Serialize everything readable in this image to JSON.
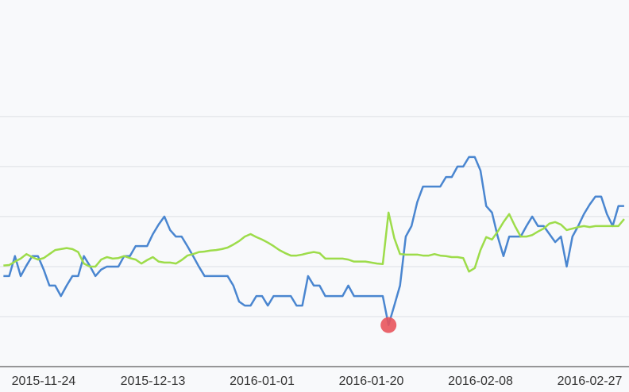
{
  "chart_data": {
    "type": "line",
    "categories": [
      null,
      null,
      null,
      null,
      null,
      null,
      null,
      "2015-11-24",
      null,
      null,
      null,
      null,
      null,
      null,
      null,
      null,
      null,
      null,
      null,
      null,
      null,
      null,
      null,
      null,
      null,
      null,
      "2015-12-13",
      null,
      null,
      null,
      null,
      null,
      null,
      null,
      null,
      null,
      null,
      null,
      null,
      null,
      null,
      null,
      null,
      null,
      null,
      "2016-01-01",
      null,
      null,
      null,
      null,
      null,
      null,
      null,
      null,
      null,
      null,
      null,
      null,
      null,
      null,
      null,
      null,
      null,
      null,
      "2016-01-20",
      null,
      null,
      null,
      null,
      null,
      null,
      null,
      null,
      null,
      null,
      null,
      null,
      null,
      null,
      null,
      null,
      null,
      null,
      "2016-02-08",
      null,
      null,
      null,
      null,
      null,
      null,
      null,
      null,
      null,
      null,
      null,
      null,
      null,
      null,
      null,
      null,
      null,
      null,
      "2016-02-27",
      null,
      null,
      null,
      null,
      null,
      null
    ],
    "series": [
      {
        "color": "#4a86d0",
        "min_point_color": "#e8545c",
        "values": [
          1.81,
          1.81,
          2.21,
          1.81,
          2.02,
          2.21,
          2.21,
          1.94,
          1.62,
          1.62,
          1.41,
          1.62,
          1.81,
          1.81,
          2.21,
          2.02,
          1.81,
          1.94,
          2.0,
          2.0,
          2.0,
          2.21,
          2.21,
          2.41,
          2.41,
          2.41,
          2.65,
          2.84,
          3.0,
          2.73,
          2.6,
          2.6,
          2.41,
          2.21,
          2.0,
          1.81,
          1.81,
          1.81,
          1.81,
          1.81,
          1.62,
          1.3,
          1.22,
          1.22,
          1.41,
          1.41,
          1.22,
          1.41,
          1.41,
          1.41,
          1.41,
          1.22,
          1.22,
          1.81,
          1.62,
          1.62,
          1.41,
          1.41,
          1.41,
          1.41,
          1.62,
          1.41,
          1.41,
          1.41,
          1.41,
          1.41,
          1.41,
          0.83,
          1.22,
          1.62,
          2.6,
          2.81,
          3.29,
          3.6,
          3.6,
          3.6,
          3.6,
          3.79,
          3.79,
          4.0,
          4.0,
          4.19,
          4.19,
          3.92,
          3.21,
          3.08,
          2.6,
          2.21,
          2.6,
          2.6,
          2.6,
          2.81,
          3.0,
          2.81,
          2.81,
          2.65,
          2.49,
          2.6,
          2.0,
          2.6,
          2.81,
          3.05,
          3.24,
          3.4,
          3.4,
          3.05,
          2.81,
          3.21,
          3.21
        ]
      },
      {
        "color": "#9ddc4a",
        "values": [
          2.02,
          2.03,
          2.1,
          2.16,
          2.25,
          2.19,
          2.14,
          2.17,
          2.25,
          2.33,
          2.35,
          2.37,
          2.35,
          2.29,
          2.06,
          2.0,
          2.0,
          2.14,
          2.19,
          2.16,
          2.17,
          2.21,
          2.17,
          2.14,
          2.06,
          2.13,
          2.19,
          2.1,
          2.08,
          2.08,
          2.06,
          2.13,
          2.22,
          2.25,
          2.29,
          2.3,
          2.32,
          2.33,
          2.35,
          2.38,
          2.44,
          2.51,
          2.6,
          2.65,
          2.59,
          2.54,
          2.48,
          2.41,
          2.33,
          2.27,
          2.22,
          2.22,
          2.24,
          2.27,
          2.29,
          2.27,
          2.16,
          2.16,
          2.16,
          2.16,
          2.14,
          2.1,
          2.1,
          2.1,
          2.08,
          2.06,
          2.05,
          3.08,
          2.57,
          2.25,
          2.24,
          2.24,
          2.24,
          2.22,
          2.22,
          2.25,
          2.22,
          2.21,
          2.19,
          2.19,
          2.17,
          1.9,
          1.97,
          2.33,
          2.59,
          2.54,
          2.7,
          2.89,
          3.05,
          2.81,
          2.6,
          2.6,
          2.63,
          2.7,
          2.76,
          2.86,
          2.89,
          2.84,
          2.73,
          2.76,
          2.79,
          2.81,
          2.79,
          2.81,
          2.81,
          2.81,
          2.81,
          2.81,
          2.95
        ]
      }
    ],
    "ylim": [
      0,
      7.33
    ],
    "yticks": [
      1,
      2,
      3,
      4,
      5
    ],
    "grid": true
  }
}
